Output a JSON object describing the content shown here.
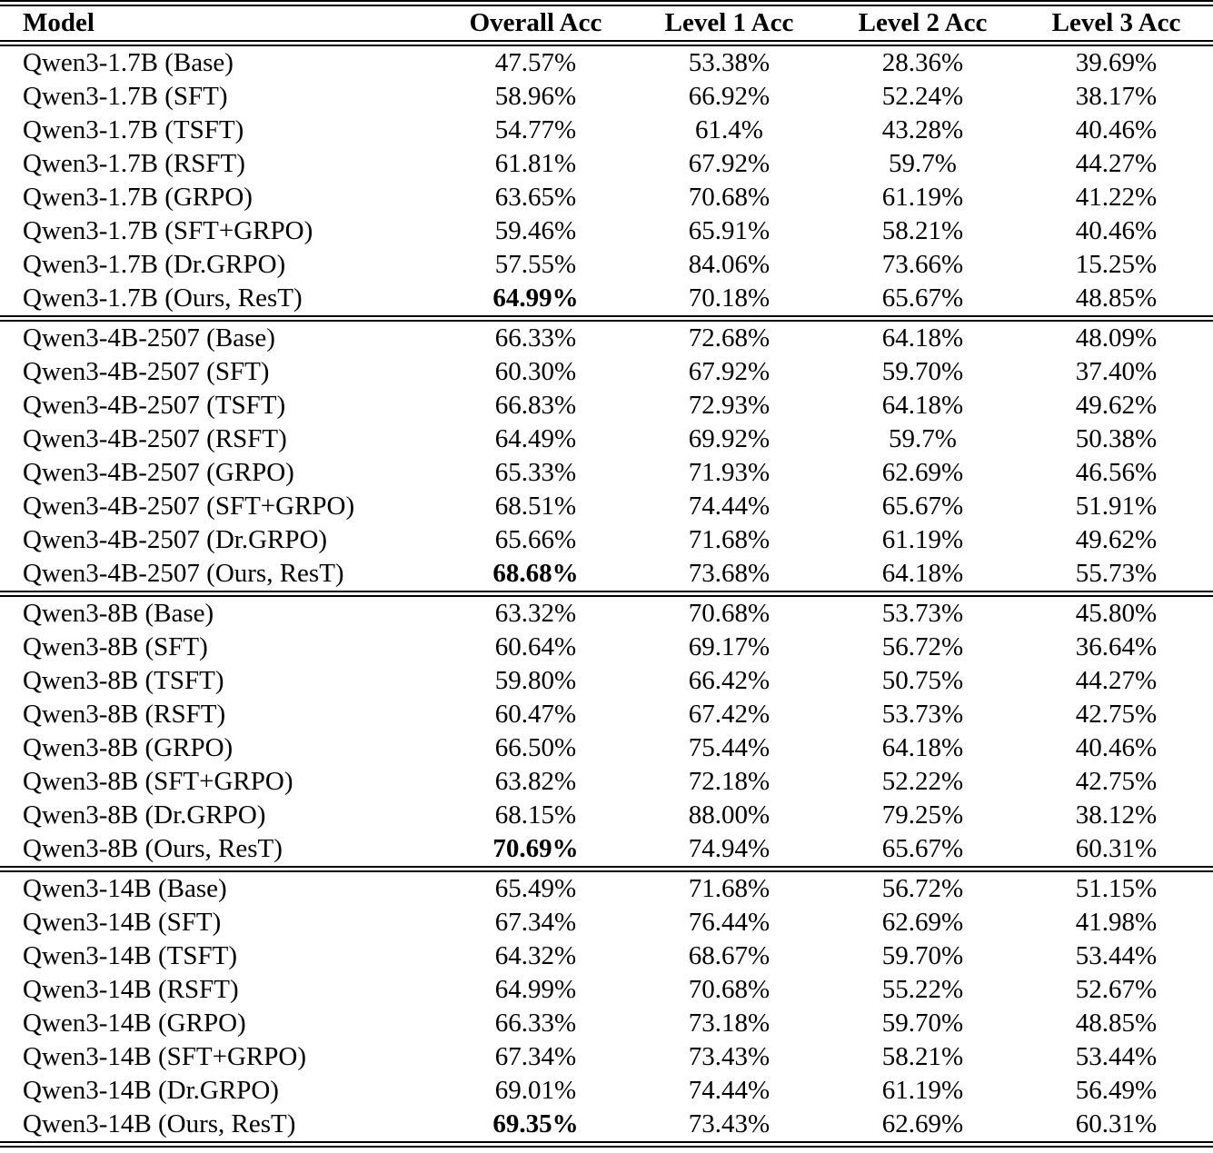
{
  "colors": {
    "background": "#ffffff",
    "text": "#000000",
    "rule": "#000000"
  },
  "table": {
    "columns": [
      {
        "label": "Model"
      },
      {
        "label": "Overall Acc"
      },
      {
        "label": "Level 1 Acc"
      },
      {
        "label": "Level 2 Acc"
      },
      {
        "label": "Level 3 Acc"
      }
    ],
    "groups": [
      {
        "name": "Qwen3-1.7B",
        "rows": [
          {
            "model": "Qwen3-1.7B (Base)",
            "overall": "47.57%",
            "level1": "53.38%",
            "level2": "28.36%",
            "level3": "39.69%",
            "overall_bold": false
          },
          {
            "model": "Qwen3-1.7B (SFT)",
            "overall": "58.96%",
            "level1": "66.92%",
            "level2": "52.24%",
            "level3": "38.17%",
            "overall_bold": false
          },
          {
            "model": "Qwen3-1.7B (TSFT)",
            "overall": "54.77%",
            "level1": "61.4%",
            "level2": "43.28%",
            "level3": "40.46%",
            "overall_bold": false
          },
          {
            "model": "Qwen3-1.7B (RSFT)",
            "overall": "61.81%",
            "level1": "67.92%",
            "level2": "59.7%",
            "level3": "44.27%",
            "overall_bold": false
          },
          {
            "model": "Qwen3-1.7B (GRPO)",
            "overall": "63.65%",
            "level1": "70.68%",
            "level2": "61.19%",
            "level3": "41.22%",
            "overall_bold": false
          },
          {
            "model": "Qwen3-1.7B (SFT+GRPO)",
            "overall": "59.46%",
            "level1": "65.91%",
            "level2": "58.21%",
            "level3": "40.46%",
            "overall_bold": false
          },
          {
            "model": "Qwen3-1.7B (Dr.GRPO)",
            "overall": "57.55%",
            "level1": "84.06%",
            "level2": "73.66%",
            "level3": "15.25%",
            "overall_bold": false
          },
          {
            "model": "Qwen3-1.7B (Ours, ResT)",
            "overall": "64.99%",
            "level1": "70.18%",
            "level2": "65.67%",
            "level3": "48.85%",
            "overall_bold": true
          }
        ]
      },
      {
        "name": "Qwen3-4B-2507",
        "rows": [
          {
            "model": "Qwen3-4B-2507 (Base)",
            "overall": "66.33%",
            "level1": "72.68%",
            "level2": "64.18%",
            "level3": "48.09%",
            "overall_bold": false
          },
          {
            "model": "Qwen3-4B-2507 (SFT)",
            "overall": "60.30%",
            "level1": "67.92%",
            "level2": "59.70%",
            "level3": "37.40%",
            "overall_bold": false
          },
          {
            "model": "Qwen3-4B-2507 (TSFT)",
            "overall": "66.83%",
            "level1": "72.93%",
            "level2": "64.18%",
            "level3": "49.62%",
            "overall_bold": false
          },
          {
            "model": "Qwen3-4B-2507 (RSFT)",
            "overall": "64.49%",
            "level1": "69.92%",
            "level2": "59.7%",
            "level3": "50.38%",
            "overall_bold": false
          },
          {
            "model": "Qwen3-4B-2507 (GRPO)",
            "overall": "65.33%",
            "level1": "71.93%",
            "level2": "62.69%",
            "level3": "46.56%",
            "overall_bold": false
          },
          {
            "model": "Qwen3-4B-2507 (SFT+GRPO)",
            "overall": "68.51%",
            "level1": "74.44%",
            "level2": "65.67%",
            "level3": "51.91%",
            "overall_bold": false
          },
          {
            "model": "Qwen3-4B-2507 (Dr.GRPO)",
            "overall": "65.66%",
            "level1": "71.68%",
            "level2": "61.19%",
            "level3": "49.62%",
            "overall_bold": false
          },
          {
            "model": "Qwen3-4B-2507 (Ours, ResT)",
            "overall": "68.68%",
            "level1": "73.68%",
            "level2": "64.18%",
            "level3": "55.73%",
            "overall_bold": true
          }
        ]
      },
      {
        "name": "Qwen3-8B",
        "rows": [
          {
            "model": "Qwen3-8B (Base)",
            "overall": "63.32%",
            "level1": "70.68%",
            "level2": "53.73%",
            "level3": "45.80%",
            "overall_bold": false
          },
          {
            "model": "Qwen3-8B (SFT)",
            "overall": "60.64%",
            "level1": "69.17%",
            "level2": "56.72%",
            "level3": "36.64%",
            "overall_bold": false
          },
          {
            "model": "Qwen3-8B (TSFT)",
            "overall": "59.80%",
            "level1": "66.42%",
            "level2": "50.75%",
            "level3": "44.27%",
            "overall_bold": false
          },
          {
            "model": "Qwen3-8B (RSFT)",
            "overall": "60.47%",
            "level1": "67.42%",
            "level2": "53.73%",
            "level3": "42.75%",
            "overall_bold": false
          },
          {
            "model": "Qwen3-8B (GRPO)",
            "overall": "66.50%",
            "level1": "75.44%",
            "level2": "64.18%",
            "level3": "40.46%",
            "overall_bold": false
          },
          {
            "model": "Qwen3-8B (SFT+GRPO)",
            "overall": "63.82%",
            "level1": "72.18%",
            "level2": "52.22%",
            "level3": "42.75%",
            "overall_bold": false
          },
          {
            "model": "Qwen3-8B (Dr.GRPO)",
            "overall": "68.15%",
            "level1": "88.00%",
            "level2": "79.25%",
            "level3": "38.12%",
            "overall_bold": false
          },
          {
            "model": "Qwen3-8B (Ours, ResT)",
            "overall": "70.69%",
            "level1": "74.94%",
            "level2": "65.67%",
            "level3": "60.31%",
            "overall_bold": true
          }
        ]
      },
      {
        "name": "Qwen3-14B",
        "rows": [
          {
            "model": "Qwen3-14B (Base)",
            "overall": "65.49%",
            "level1": "71.68%",
            "level2": "56.72%",
            "level3": "51.15%",
            "overall_bold": false
          },
          {
            "model": "Qwen3-14B (SFT)",
            "overall": "67.34%",
            "level1": "76.44%",
            "level2": "62.69%",
            "level3": "41.98%",
            "overall_bold": false
          },
          {
            "model": "Qwen3-14B (TSFT)",
            "overall": "64.32%",
            "level1": "68.67%",
            "level2": "59.70%",
            "level3": "53.44%",
            "overall_bold": false
          },
          {
            "model": "Qwen3-14B (RSFT)",
            "overall": "64.99%",
            "level1": "70.68%",
            "level2": "55.22%",
            "level3": "52.67%",
            "overall_bold": false
          },
          {
            "model": "Qwen3-14B (GRPO)",
            "overall": "66.33%",
            "level1": "73.18%",
            "level2": "59.70%",
            "level3": "48.85%",
            "overall_bold": false
          },
          {
            "model": "Qwen3-14B (SFT+GRPO)",
            "overall": "67.34%",
            "level1": "73.43%",
            "level2": "58.21%",
            "level3": "53.44%",
            "overall_bold": false
          },
          {
            "model": "Qwen3-14B (Dr.GRPO)",
            "overall": "69.01%",
            "level1": "74.44%",
            "level2": "61.19%",
            "level3": "56.49%",
            "overall_bold": false
          },
          {
            "model": "Qwen3-14B (Ours, ResT)",
            "overall": "69.35%",
            "level1": "73.43%",
            "level2": "62.69%",
            "level3": "60.31%",
            "overall_bold": true
          }
        ]
      }
    ]
  }
}
